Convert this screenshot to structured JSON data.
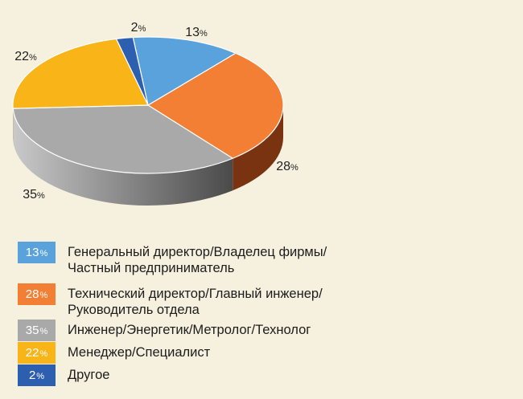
{
  "chart_data": {
    "type": "pie",
    "style": "3d",
    "slices": [
      {
        "key": "ceo",
        "value": 13,
        "label": "13%",
        "legend": "Генеральный директор/Владелец фирмы/\nЧастный предприниматель",
        "color": "#5aa2dc",
        "side": "#2f6fa8"
      },
      {
        "key": "cto",
        "value": 28,
        "label": "28%",
        "legend": "Технический директор/Главный инженер/\nРуководитель отдела",
        "color": "#f37f35",
        "side": "#7a3311"
      },
      {
        "key": "engineer",
        "value": 35,
        "label": "35%",
        "legend": "Инженер/Энергетик/Метролог/Технолог",
        "color": "#a9a9a9",
        "side": "#5e5e5e"
      },
      {
        "key": "manager",
        "value": 22,
        "label": "22%",
        "legend": "Менеджер/Специалист",
        "color": "#f9b417",
        "side": "#a8740a"
      },
      {
        "key": "other",
        "value": 2,
        "label": "2%",
        "legend": "Другое",
        "color": "#2d5fb0",
        "side": "#1a3a70"
      }
    ]
  }
}
